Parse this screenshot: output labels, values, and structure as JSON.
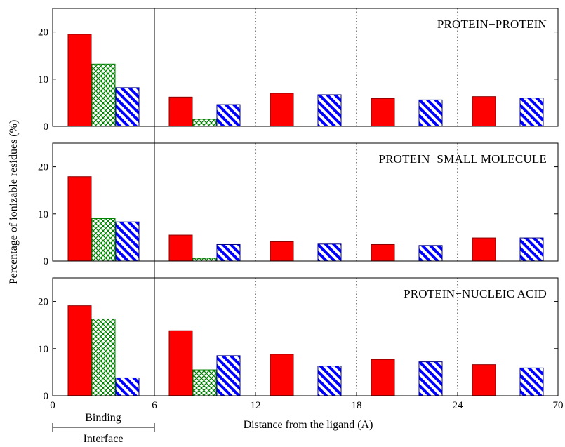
{
  "chart_data": {
    "type": "bar",
    "ylabel": "Percentage of ionizable residues (%)",
    "xlabel": "Distance from the ligand (A)",
    "x_ticks": [
      "0",
      "6",
      "12",
      "18",
      "24",
      "70"
    ],
    "y_ticks": [
      0,
      10,
      20
    ],
    "ylim": [
      0,
      25
    ],
    "grid": false,
    "legend": "none",
    "annotations": {
      "binding": "Binding",
      "interface": "Interface"
    },
    "bins": [
      "0-6",
      "6-12",
      "12-18",
      "18-24",
      "24-70"
    ],
    "series_colors": [
      "#ff0000",
      "#008000",
      "#0000ff"
    ],
    "series_patterns": [
      "solid",
      "crosshatch",
      "diagonal"
    ],
    "panels": [
      {
        "title": "PROTEIN−PROTEIN",
        "series": [
          {
            "values": [
              19.5,
              6.2,
              7.0,
              5.9,
              6.3
            ]
          },
          {
            "values": [
              13.2,
              1.5,
              0,
              0,
              0
            ]
          },
          {
            "values": [
              8.2,
              4.6,
              6.7,
              5.6,
              6.0
            ]
          }
        ]
      },
      {
        "title": "PROTEIN−SMALL MOLECULE",
        "series": [
          {
            "values": [
              17.9,
              5.5,
              4.1,
              3.5,
              4.9
            ]
          },
          {
            "values": [
              9.0,
              0.6,
              0,
              0,
              0
            ]
          },
          {
            "values": [
              8.3,
              3.5,
              3.6,
              3.3,
              4.9
            ]
          }
        ]
      },
      {
        "title": "PROTEIN−NUCLEIC ACID",
        "series": [
          {
            "values": [
              19.1,
              13.8,
              8.8,
              7.7,
              6.6
            ]
          },
          {
            "values": [
              16.3,
              5.5,
              0,
              0,
              0
            ]
          },
          {
            "values": [
              3.8,
              8.5,
              6.3,
              7.2,
              5.9
            ]
          }
        ]
      }
    ]
  }
}
